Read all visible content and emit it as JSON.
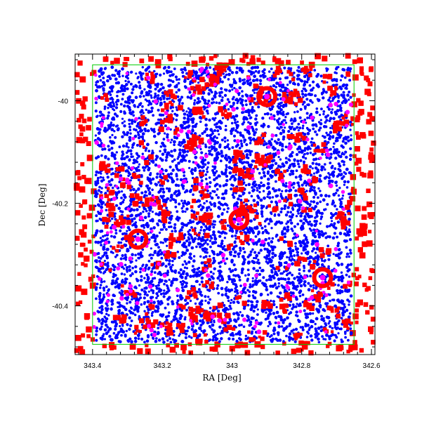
{
  "chart_data": {
    "type": "scatter",
    "title": "",
    "xlabel": "RA [Deg]",
    "ylabel": "Dec [Deg]",
    "xlim": [
      343.45,
      342.59
    ],
    "ylim": [
      -40.495,
      -39.909
    ],
    "x_ticks": [
      "343.4",
      "343.2",
      "343",
      "342.8",
      "342.6"
    ],
    "y_ticks": [
      "-40",
      "-40.2",
      "-40.4"
    ],
    "grid": false,
    "legend": "none",
    "colors": {
      "blue": "#0000ff",
      "red": "#ff0000",
      "magenta": "#ff00ff",
      "green": "#00cc00",
      "axes": "#000000"
    },
    "regions": {
      "inner_box": {
        "ra": [
          343.4,
          342.65
        ],
        "dec": [
          -40.475,
          -39.93
        ],
        "color": "green"
      }
    },
    "series": [
      {
        "color": "blue",
        "marker": "dot",
        "density": "uniform over inner box",
        "approx_count": 6000
      },
      {
        "color": "red",
        "marker": "square",
        "density": "border band outside inner box plus clusters inside",
        "approx_count": 2400
      },
      {
        "color": "magenta",
        "marker": "dot",
        "density": "sparse",
        "approx_count": 180
      }
    ],
    "annotations": [
      {
        "type": "ring",
        "ra": 342.9,
        "dec": -39.992,
        "color": "red"
      },
      {
        "type": "ring",
        "ra": 342.98,
        "dec": -40.232,
        "color": "red"
      },
      {
        "type": "ring",
        "ra": 342.74,
        "dec": -40.345,
        "color": "red"
      },
      {
        "type": "ring",
        "ra": 343.27,
        "dec": -40.27,
        "color": "red"
      }
    ]
  }
}
